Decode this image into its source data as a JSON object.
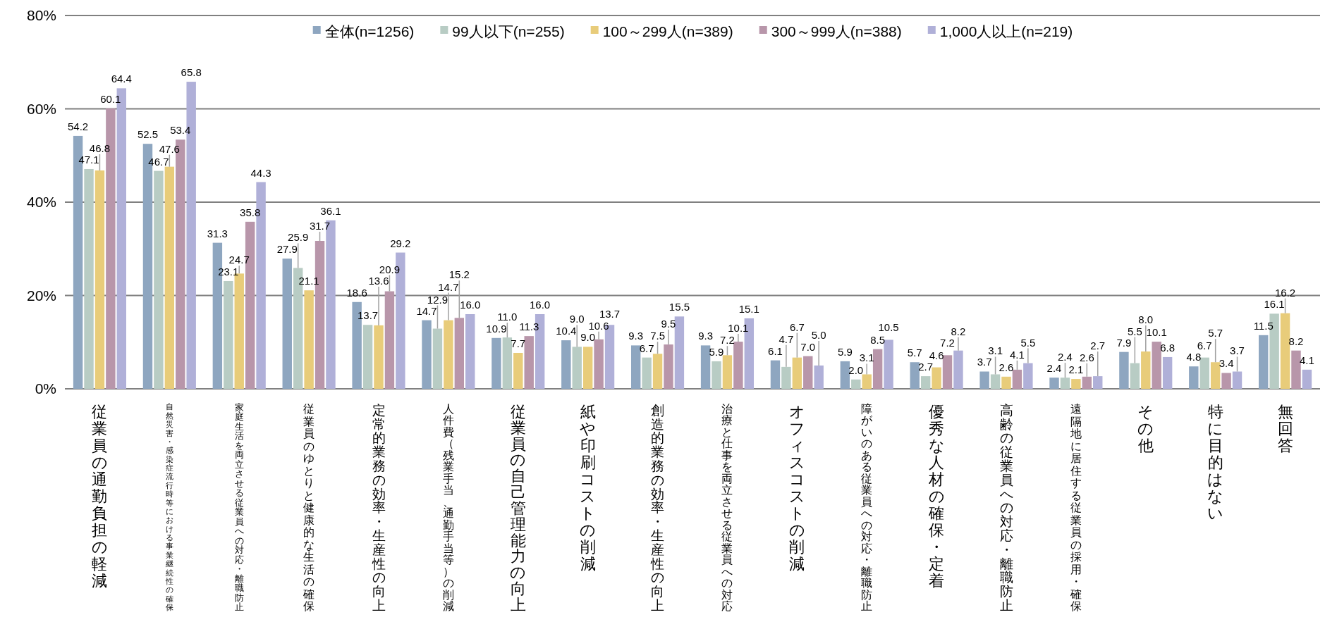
{
  "chart_data": {
    "type": "bar",
    "categories": [
      "従業員の通勤負担の軽減",
      "自然災害・感染症流行時等における事業継続性の確保",
      "家庭生活を両立させる従業員への対応・離職防止",
      "従業員のゆとりと健康的な生活の確保",
      "定常的業務の効率・生産性の向上",
      "人件費（残業手当、通勤手当等）の削減",
      "従業員の自己管理能力の向上",
      "紙や印刷コストの削減",
      "創造的業務の効率・生産性の向上",
      "治療と仕事を両立させる従業員への対応",
      "オフィスコストの削減",
      "障がいのある従業員への対応・離職防止",
      "優秀な人材の確保・定着",
      "高齢の従業員への対応・離職防止",
      "遠隔地に居住する従業員の採用・確保",
      "その他",
      "特に目的はない",
      "無回答"
    ],
    "series": [
      {
        "name": "全体(n=1256)",
        "color": "#8ea6c0",
        "values": [
          54.2,
          52.5,
          31.3,
          27.9,
          18.6,
          14.7,
          10.9,
          10.4,
          9.3,
          9.3,
          6.1,
          5.9,
          5.7,
          3.7,
          2.4,
          7.9,
          4.8,
          11.5
        ],
        "value_labels": [
          "54.2",
          "52.5",
          "31.3",
          "27.9",
          "18.6",
          "14.7",
          "10.9",
          "10.4",
          "9.3",
          "9.3",
          "6.1",
          "5.9",
          "5.7",
          "3.7",
          "2.4",
          "7.9",
          "4.8",
          "11.5"
        ]
      },
      {
        "name": "99人以下(n=255)",
        "color": "#b8ccc4",
        "values": [
          47.1,
          46.7,
          23.1,
          25.9,
          13.7,
          12.9,
          11.0,
          9.0,
          6.7,
          5.9,
          4.7,
          2.0,
          2.7,
          3.1,
          2.4,
          5.5,
          6.7,
          16.1
        ],
        "value_labels": [
          "47.1",
          "46.7",
          "23.1",
          "25.9",
          "13.7",
          "12.9",
          "11.0",
          "9.0",
          "6.7",
          "5.9",
          "4.7",
          "2.0",
          "2.7",
          "3.1",
          "2.4",
          "5.5",
          "6.7",
          "16.1"
        ]
      },
      {
        "name": "100～299人(n=389)",
        "color": "#e8cc7a",
        "values": [
          46.8,
          47.6,
          24.7,
          21.1,
          13.6,
          14.7,
          7.7,
          9.0,
          7.5,
          7.2,
          6.7,
          3.1,
          4.6,
          2.6,
          2.1,
          8.0,
          5.7,
          16.2
        ],
        "value_labels": [
          "46.8",
          "47.6",
          "24.7",
          "21.1",
          "13.6",
          "14.7",
          "7.7",
          "9.0",
          "7.5",
          "7.2",
          "6.7",
          "3.1",
          "4.6",
          "2.6",
          "2.1",
          "8.0",
          "5.7",
          "16.2"
        ]
      },
      {
        "name": "300～999人(n=388)",
        "color": "#b896aa",
        "values": [
          60.1,
          53.4,
          35.8,
          31.7,
          20.9,
          15.2,
          11.3,
          10.6,
          9.5,
          10.1,
          7.0,
          8.5,
          7.2,
          4.1,
          2.6,
          10.1,
          3.4,
          8.2
        ],
        "value_labels": [
          "60.1",
          "53.4",
          "35.8",
          "31.7",
          "20.9",
          "15.2",
          "11.3",
          "10.6",
          "9.5",
          "10.1",
          "7.0",
          "8.5",
          "7.2",
          "4.1",
          "2.6",
          "10.1",
          "3.4",
          "8.2"
        ]
      },
      {
        "name": "1,000人以上(n=219)",
        "color": "#b0b0d8",
        "values": [
          64.4,
          65.8,
          44.3,
          36.1,
          29.2,
          16.0,
          16.0,
          13.7,
          15.5,
          15.1,
          5.0,
          10.5,
          8.2,
          5.5,
          2.7,
          6.8,
          3.7,
          4.1
        ],
        "value_labels": [
          "64.4",
          "65.8",
          "44.3",
          "36.1",
          "29.2",
          "16.0",
          "16.0",
          "13.7",
          "15.5",
          "15.1",
          "5.0",
          "10.5",
          "8.2",
          "5.5",
          "2.7",
          "6.8",
          "3.7",
          "4.1"
        ]
      }
    ],
    "ylim": [
      0,
      80
    ],
    "yticks": [
      {
        "value": 0,
        "label": "0%"
      },
      {
        "value": 20,
        "label": "20%"
      },
      {
        "value": 40,
        "label": "40%"
      },
      {
        "value": 60,
        "label": "60%"
      },
      {
        "value": 80,
        "label": "80%"
      }
    ],
    "grid": "y",
    "legend": "top"
  }
}
